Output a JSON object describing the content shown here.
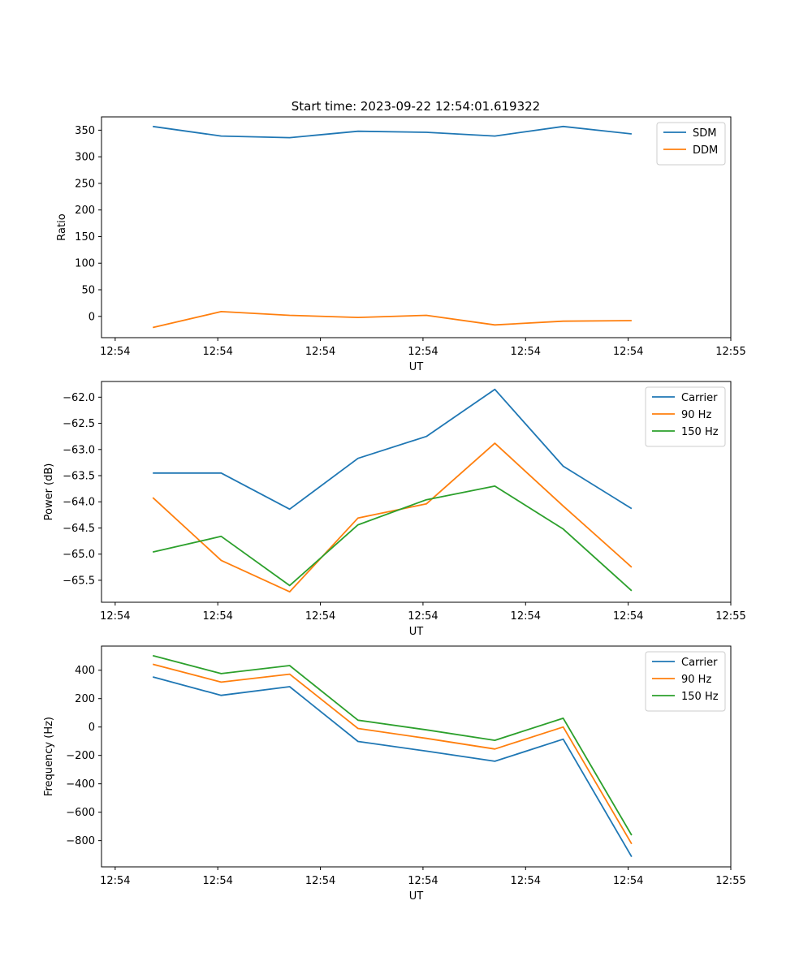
{
  "figure_title": "Start time: 2023-09-22 12:54:01.619322",
  "colors": {
    "blue": "#1f77b4",
    "orange": "#ff7f0e",
    "green": "#2ca02c",
    "axis": "#000000",
    "legend_border": "#cccccc"
  },
  "x_ticks": [
    "12:54",
    "12:54",
    "12:54",
    "12:54",
    "12:54",
    "12:54",
    "12:55"
  ],
  "chart_data": [
    {
      "type": "line",
      "title": "Start time: 2023-09-22 12:54:01.619322",
      "xlabel": "UT",
      "ylabel": "Ratio",
      "xlim": [
        -0.2,
        9.0
      ],
      "ylim": [
        -40,
        375
      ],
      "x": [
        0.55,
        1.55,
        2.55,
        3.55,
        4.55,
        5.55,
        6.55,
        7.55
      ],
      "x_tick_positions": [
        0,
        1.5,
        3,
        4.5,
        6,
        7.5,
        9
      ],
      "y_ticks": [
        0,
        50,
        100,
        150,
        200,
        250,
        300,
        350
      ],
      "y_tick_labels": [
        "0",
        "50",
        "100",
        "150",
        "200",
        "250",
        "300",
        "350"
      ],
      "legend_position": "top-right",
      "series": [
        {
          "name": "SDM",
          "color": "#1f77b4",
          "values": [
            357,
            339,
            336,
            348,
            346,
            339,
            357,
            343
          ]
        },
        {
          "name": "DDM",
          "color": "#ff7f0e",
          "values": [
            -21,
            9,
            2,
            -2,
            2,
            -16,
            -9,
            -8
          ]
        }
      ]
    },
    {
      "type": "line",
      "title": "",
      "xlabel": "UT",
      "ylabel": "Power (dB)",
      "xlim": [
        -0.2,
        9.0
      ],
      "ylim": [
        -65.92,
        -61.7
      ],
      "x": [
        0.55,
        1.55,
        2.55,
        3.55,
        4.55,
        5.55,
        6.55,
        7.55
      ],
      "x_tick_positions": [
        0,
        1.5,
        3,
        4.5,
        6,
        7.5,
        9
      ],
      "y_ticks": [
        -65.5,
        -65.0,
        -64.5,
        -64.0,
        -63.5,
        -63.0,
        -62.5,
        -62.0
      ],
      "y_tick_labels": [
        "−65.5",
        "−65.0",
        "−64.5",
        "−64.0",
        "−63.5",
        "−63.0",
        "−62.5",
        "−62.0"
      ],
      "legend_position": "top-right",
      "series": [
        {
          "name": "Carrier",
          "color": "#1f77b4",
          "values": [
            -63.45,
            -63.45,
            -64.14,
            -63.17,
            -62.75,
            -61.85,
            -63.32,
            -64.13
          ]
        },
        {
          "name": "90 Hz",
          "color": "#ff7f0e",
          "values": [
            -63.92,
            -65.12,
            -65.72,
            -64.31,
            -64.04,
            -62.88,
            -64.08,
            -65.25
          ]
        },
        {
          "name": "150 Hz",
          "color": "#2ca02c",
          "values": [
            -64.96,
            -64.66,
            -65.6,
            -64.44,
            -63.96,
            -63.7,
            -64.52,
            -65.7
          ]
        }
      ]
    },
    {
      "type": "line",
      "title": "",
      "xlabel": "UT",
      "ylabel": "Frequency (Hz)",
      "xlim": [
        -0.2,
        9.0
      ],
      "ylim": [
        -985,
        570
      ],
      "x": [
        0.55,
        1.55,
        2.55,
        3.55,
        4.55,
        5.55,
        6.55,
        7.55
      ],
      "x_tick_positions": [
        0,
        1.5,
        3,
        4.5,
        6,
        7.5,
        9
      ],
      "y_ticks": [
        -800,
        -600,
        -400,
        -200,
        0,
        200,
        400
      ],
      "y_tick_labels": [
        "−800",
        "−600",
        "−400",
        "−200",
        "0",
        "200",
        "400"
      ],
      "legend_position": "top-right",
      "series": [
        {
          "name": "Carrier",
          "color": "#1f77b4",
          "values": [
            353,
            223,
            284,
            -102,
            -170,
            -241,
            -86,
            -914
          ]
        },
        {
          "name": "90 Hz",
          "color": "#ff7f0e",
          "values": [
            442,
            316,
            372,
            -10,
            -80,
            -155,
            0,
            -823
          ]
        },
        {
          "name": "150 Hz",
          "color": "#2ca02c",
          "values": [
            503,
            376,
            433,
            48,
            -20,
            -94,
            62,
            -762
          ]
        }
      ]
    }
  ]
}
